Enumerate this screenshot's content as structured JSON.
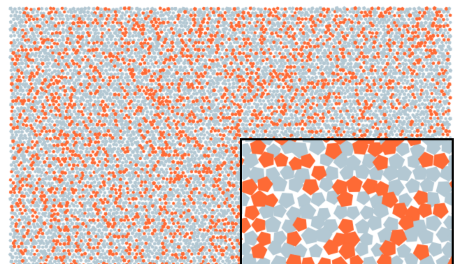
{
  "figure": {
    "colors": {
      "background": "#ffffff",
      "particle_primary": "#b3c8d3",
      "particle_accent": "#fe6a35",
      "inset_border": "#000000"
    },
    "particles": {
      "shape": "pentagon",
      "accent_fraction": 0.32
    },
    "inset": {
      "shape": "pentagon",
      "accent_fraction": 0.33
    }
  }
}
